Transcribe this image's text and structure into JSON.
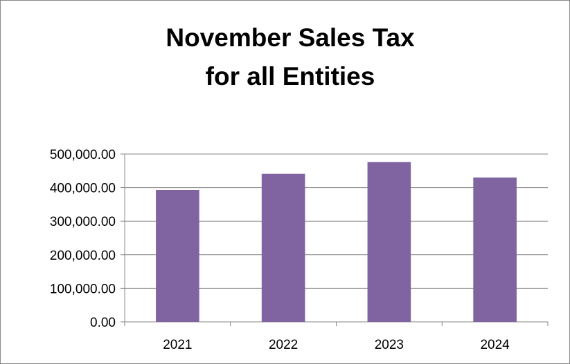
{
  "chart_data": {
    "type": "bar",
    "title_lines": [
      "November Sales Tax",
      "for all Entities"
    ],
    "categories": [
      "2021",
      "2022",
      "2023",
      "2024"
    ],
    "values": [
      393000,
      441000,
      476000,
      430000
    ],
    "y_ticks": [
      "0.00",
      "100,000.00",
      "200,000.00",
      "300,000.00",
      "400,000.00",
      "500,000.00"
    ],
    "ylim": [
      0,
      500000
    ],
    "bar_color": "#8064A2",
    "gridlines": true,
    "legend": false
  }
}
